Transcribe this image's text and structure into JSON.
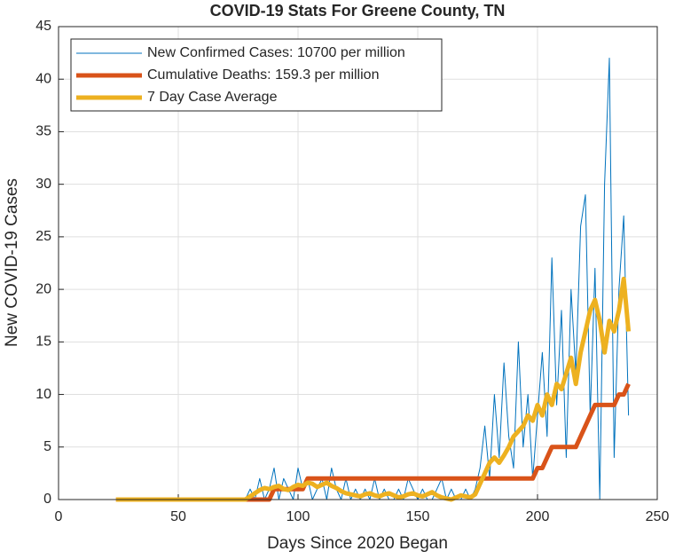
{
  "chart_data": {
    "type": "line",
    "title": "COVID-19 Stats For Greene County, TN",
    "x_label": "Days Since 2020 Began",
    "y_label": "New COVID-19 Cases",
    "xlim": [
      0,
      250
    ],
    "xticks": [
      0,
      50,
      100,
      150,
      200,
      250
    ],
    "ylim": [
      0,
      45
    ],
    "yticks": [
      0,
      5,
      10,
      15,
      20,
      25,
      30,
      35,
      40,
      45
    ],
    "grid": true,
    "legend": "upper left",
    "x": [
      24,
      26,
      28,
      30,
      32,
      34,
      36,
      38,
      40,
      42,
      44,
      46,
      48,
      50,
      52,
      54,
      56,
      58,
      60,
      62,
      64,
      66,
      68,
      70,
      72,
      74,
      76,
      78,
      80,
      82,
      84,
      86,
      88,
      90,
      92,
      94,
      96,
      98,
      100,
      102,
      104,
      106,
      108,
      110,
      112,
      114,
      116,
      118,
      120,
      122,
      124,
      126,
      128,
      130,
      132,
      134,
      136,
      138,
      140,
      142,
      144,
      146,
      148,
      150,
      152,
      154,
      156,
      158,
      160,
      162,
      164,
      166,
      168,
      170,
      172,
      174,
      176,
      178,
      180,
      182,
      184,
      186,
      188,
      190,
      192,
      194,
      196,
      198,
      200,
      202,
      204,
      206,
      208,
      210,
      212,
      214,
      216,
      218,
      220,
      222,
      224,
      226,
      228,
      230,
      232,
      234,
      236,
      238
    ],
    "series": [
      {
        "name": "New Confirmed Cases: 10700 per million",
        "color": "#0072bd",
        "width": 1,
        "values": [
          0,
          0,
          0,
          0,
          0,
          0,
          0,
          0,
          0,
          0,
          0,
          0,
          0,
          0,
          0,
          0,
          0,
          0,
          0,
          0,
          0,
          0,
          0,
          0,
          0,
          0,
          0,
          0,
          1,
          0,
          2,
          0,
          1,
          3,
          0,
          2,
          1,
          0,
          3,
          1,
          2,
          0,
          1,
          2,
          0,
          3,
          1,
          0,
          2,
          0,
          1,
          0,
          1,
          0,
          2,
          0,
          1,
          0,
          0,
          1,
          0,
          2,
          1,
          0,
          1,
          0,
          0,
          1,
          2,
          0,
          1,
          0,
          0,
          1,
          0,
          1,
          3,
          7,
          2,
          10,
          4,
          13,
          6,
          3,
          15,
          5,
          10,
          2,
          8,
          14,
          6,
          23,
          9,
          18,
          4,
          20,
          12,
          26,
          29,
          8,
          22,
          0,
          30,
          42,
          4,
          20,
          27,
          8
        ]
      },
      {
        "name": "Cumulative Deaths: 159.3 per million",
        "color": "#d95319",
        "width": 5,
        "values": [
          0,
          0,
          0,
          0,
          0,
          0,
          0,
          0,
          0,
          0,
          0,
          0,
          0,
          0,
          0,
          0,
          0,
          0,
          0,
          0,
          0,
          0,
          0,
          0,
          0,
          0,
          0,
          0,
          0,
          0,
          0,
          0,
          0,
          1,
          1,
          1,
          1,
          1,
          1,
          1,
          2,
          2,
          2,
          2,
          2,
          2,
          2,
          2,
          2,
          2,
          2,
          2,
          2,
          2,
          2,
          2,
          2,
          2,
          2,
          2,
          2,
          2,
          2,
          2,
          2,
          2,
          2,
          2,
          2,
          2,
          2,
          2,
          2,
          2,
          2,
          2,
          2,
          2,
          2,
          2,
          2,
          2,
          2,
          2,
          2,
          2,
          2,
          2,
          3,
          3,
          4,
          5,
          5,
          5,
          5,
          5,
          5,
          6,
          7,
          8,
          9,
          9,
          9,
          9,
          9,
          10,
          10,
          11
        ]
      },
      {
        "name": "7 Day Case Average",
        "color": "#edb120",
        "width": 5,
        "values": [
          0,
          0,
          0,
          0,
          0,
          0,
          0,
          0,
          0,
          0,
          0,
          0,
          0,
          0,
          0,
          0,
          0,
          0,
          0,
          0,
          0,
          0,
          0,
          0,
          0,
          0,
          0,
          0,
          0.3,
          0.6,
          0.9,
          1.1,
          1.0,
          1.2,
          1.3,
          1.0,
          0.9,
          1.2,
          1.4,
          1.3,
          1.6,
          1.5,
          1.2,
          1.4,
          1.6,
          1.3,
          1.1,
          0.8,
          0.6,
          0.5,
          0.4,
          0.3,
          0.5,
          0.6,
          0.4,
          0.3,
          0.5,
          0.6,
          0.4,
          0.2,
          0.3,
          0.5,
          0.6,
          0.4,
          0.3,
          0.5,
          0.7,
          0.4,
          0.2,
          0.1,
          0.0,
          0.2,
          0.4,
          0.3,
          0.2,
          0.5,
          1.5,
          2.5,
          3.5,
          4,
          3.5,
          4.2,
          5,
          6,
          6.5,
          7,
          8,
          7.5,
          9,
          8,
          10,
          9,
          11,
          10.5,
          12,
          13.5,
          11,
          14,
          16,
          18,
          19,
          17,
          14,
          17,
          16,
          18,
          21,
          16
        ]
      }
    ]
  }
}
